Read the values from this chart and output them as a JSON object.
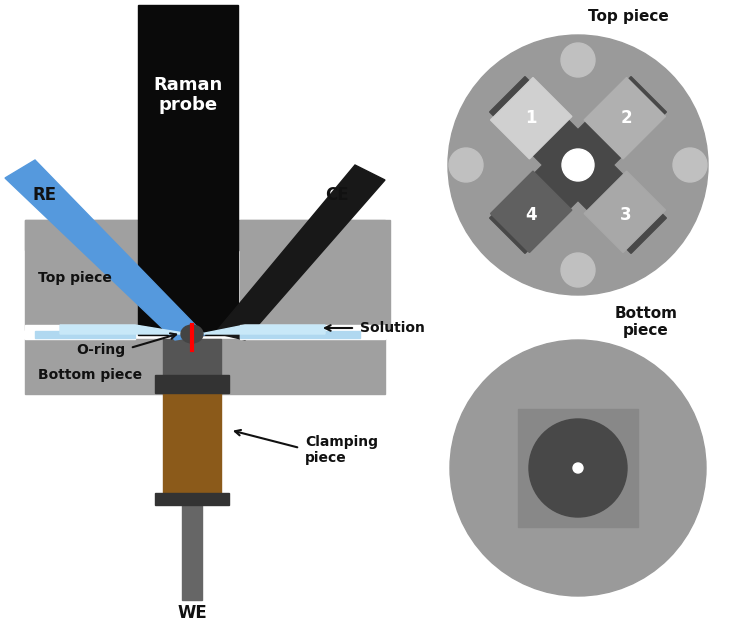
{
  "bg_color": "#ffffff",
  "gray_piece": "#a0a0a0",
  "gray_dark": "#606060",
  "gray_med": "#888888",
  "black": "#111111",
  "blue_electrode": "#5599dd",
  "brown_clamp": "#8B5A1A",
  "red_laser": "#ff0000",
  "white": "#ffffff",
  "top_piece_label": "Top piece",
  "bottom_piece_label": "Bottom\npiece",
  "re_label": "RE",
  "ce_label": "CE",
  "raman_label": "Raman\nprobe",
  "top_piece_side_label": "Top piece",
  "oring_label": "O-ring",
  "bottom_piece_side_label": "Bottom piece",
  "solution_label": "Solution",
  "clamp_label": "Clamping\npiece",
  "we_label": "WE"
}
